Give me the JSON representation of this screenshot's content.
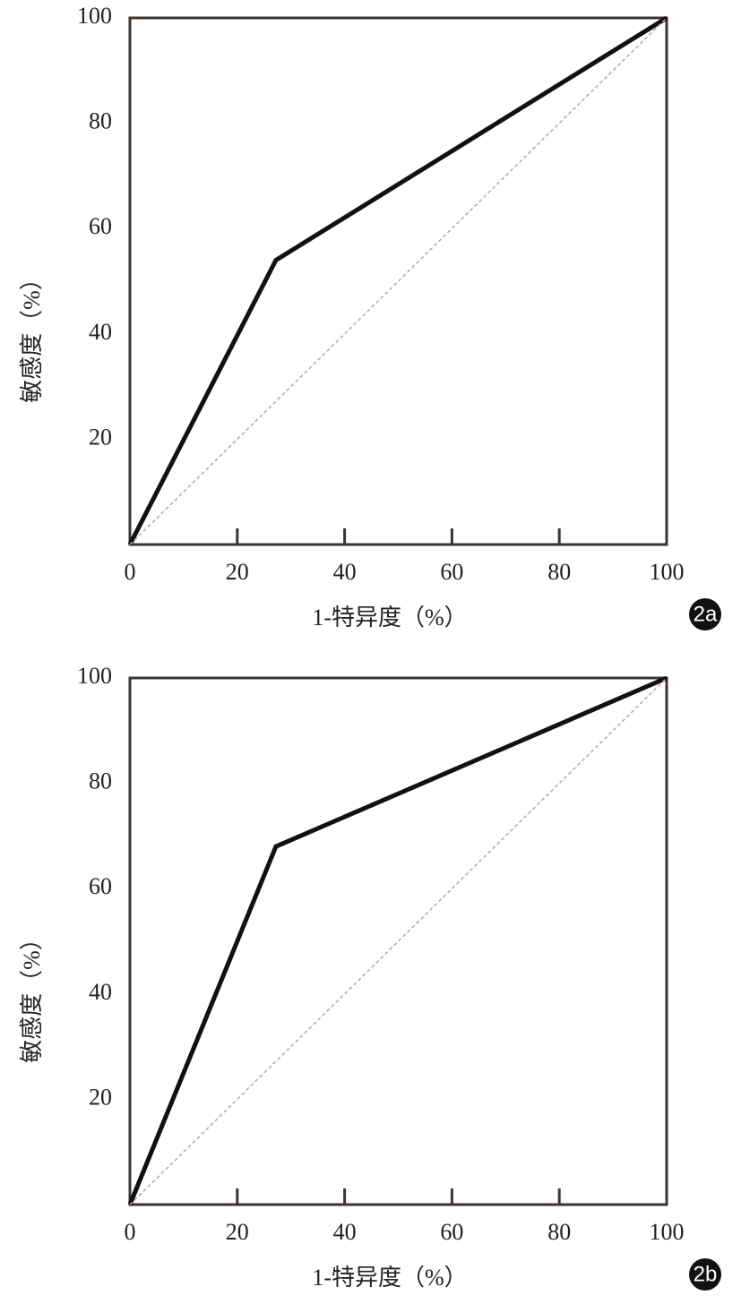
{
  "chart_data": [
    {
      "type": "line",
      "panel": "2a",
      "xlabel": "1-特异度（%）",
      "ylabel": "敏感度（%）",
      "xlim": [
        0,
        100
      ],
      "ylim": [
        0,
        100
      ],
      "xticks": [
        0,
        20,
        40,
        60,
        80,
        100
      ],
      "yticks": [
        20,
        40,
        60,
        80,
        100
      ],
      "series": [
        {
          "color": "#111111",
          "x": [
            0,
            27.2,
            100
          ],
          "values": [
            0,
            54,
            100
          ]
        },
        {
          "color": "#b9a3aa",
          "dash": true,
          "x": [
            0,
            100
          ],
          "values": [
            0,
            100
          ]
        }
      ]
    },
    {
      "type": "line",
      "panel": "2b",
      "xlabel": "1-特异度（%）",
      "ylabel": "敏感度（%）",
      "xlim": [
        0,
        100
      ],
      "ylim": [
        0,
        100
      ],
      "xticks": [
        0,
        20,
        40,
        60,
        80,
        100
      ],
      "yticks": [
        20,
        40,
        60,
        80,
        100
      ],
      "series": [
        {
          "color": "#111111",
          "x": [
            0,
            27.2,
            100
          ],
          "values": [
            0,
            68,
            100
          ]
        },
        {
          "color": "#b9a3aa",
          "dash": true,
          "x": [
            0,
            100
          ],
          "values": [
            0,
            100
          ]
        }
      ]
    }
  ]
}
